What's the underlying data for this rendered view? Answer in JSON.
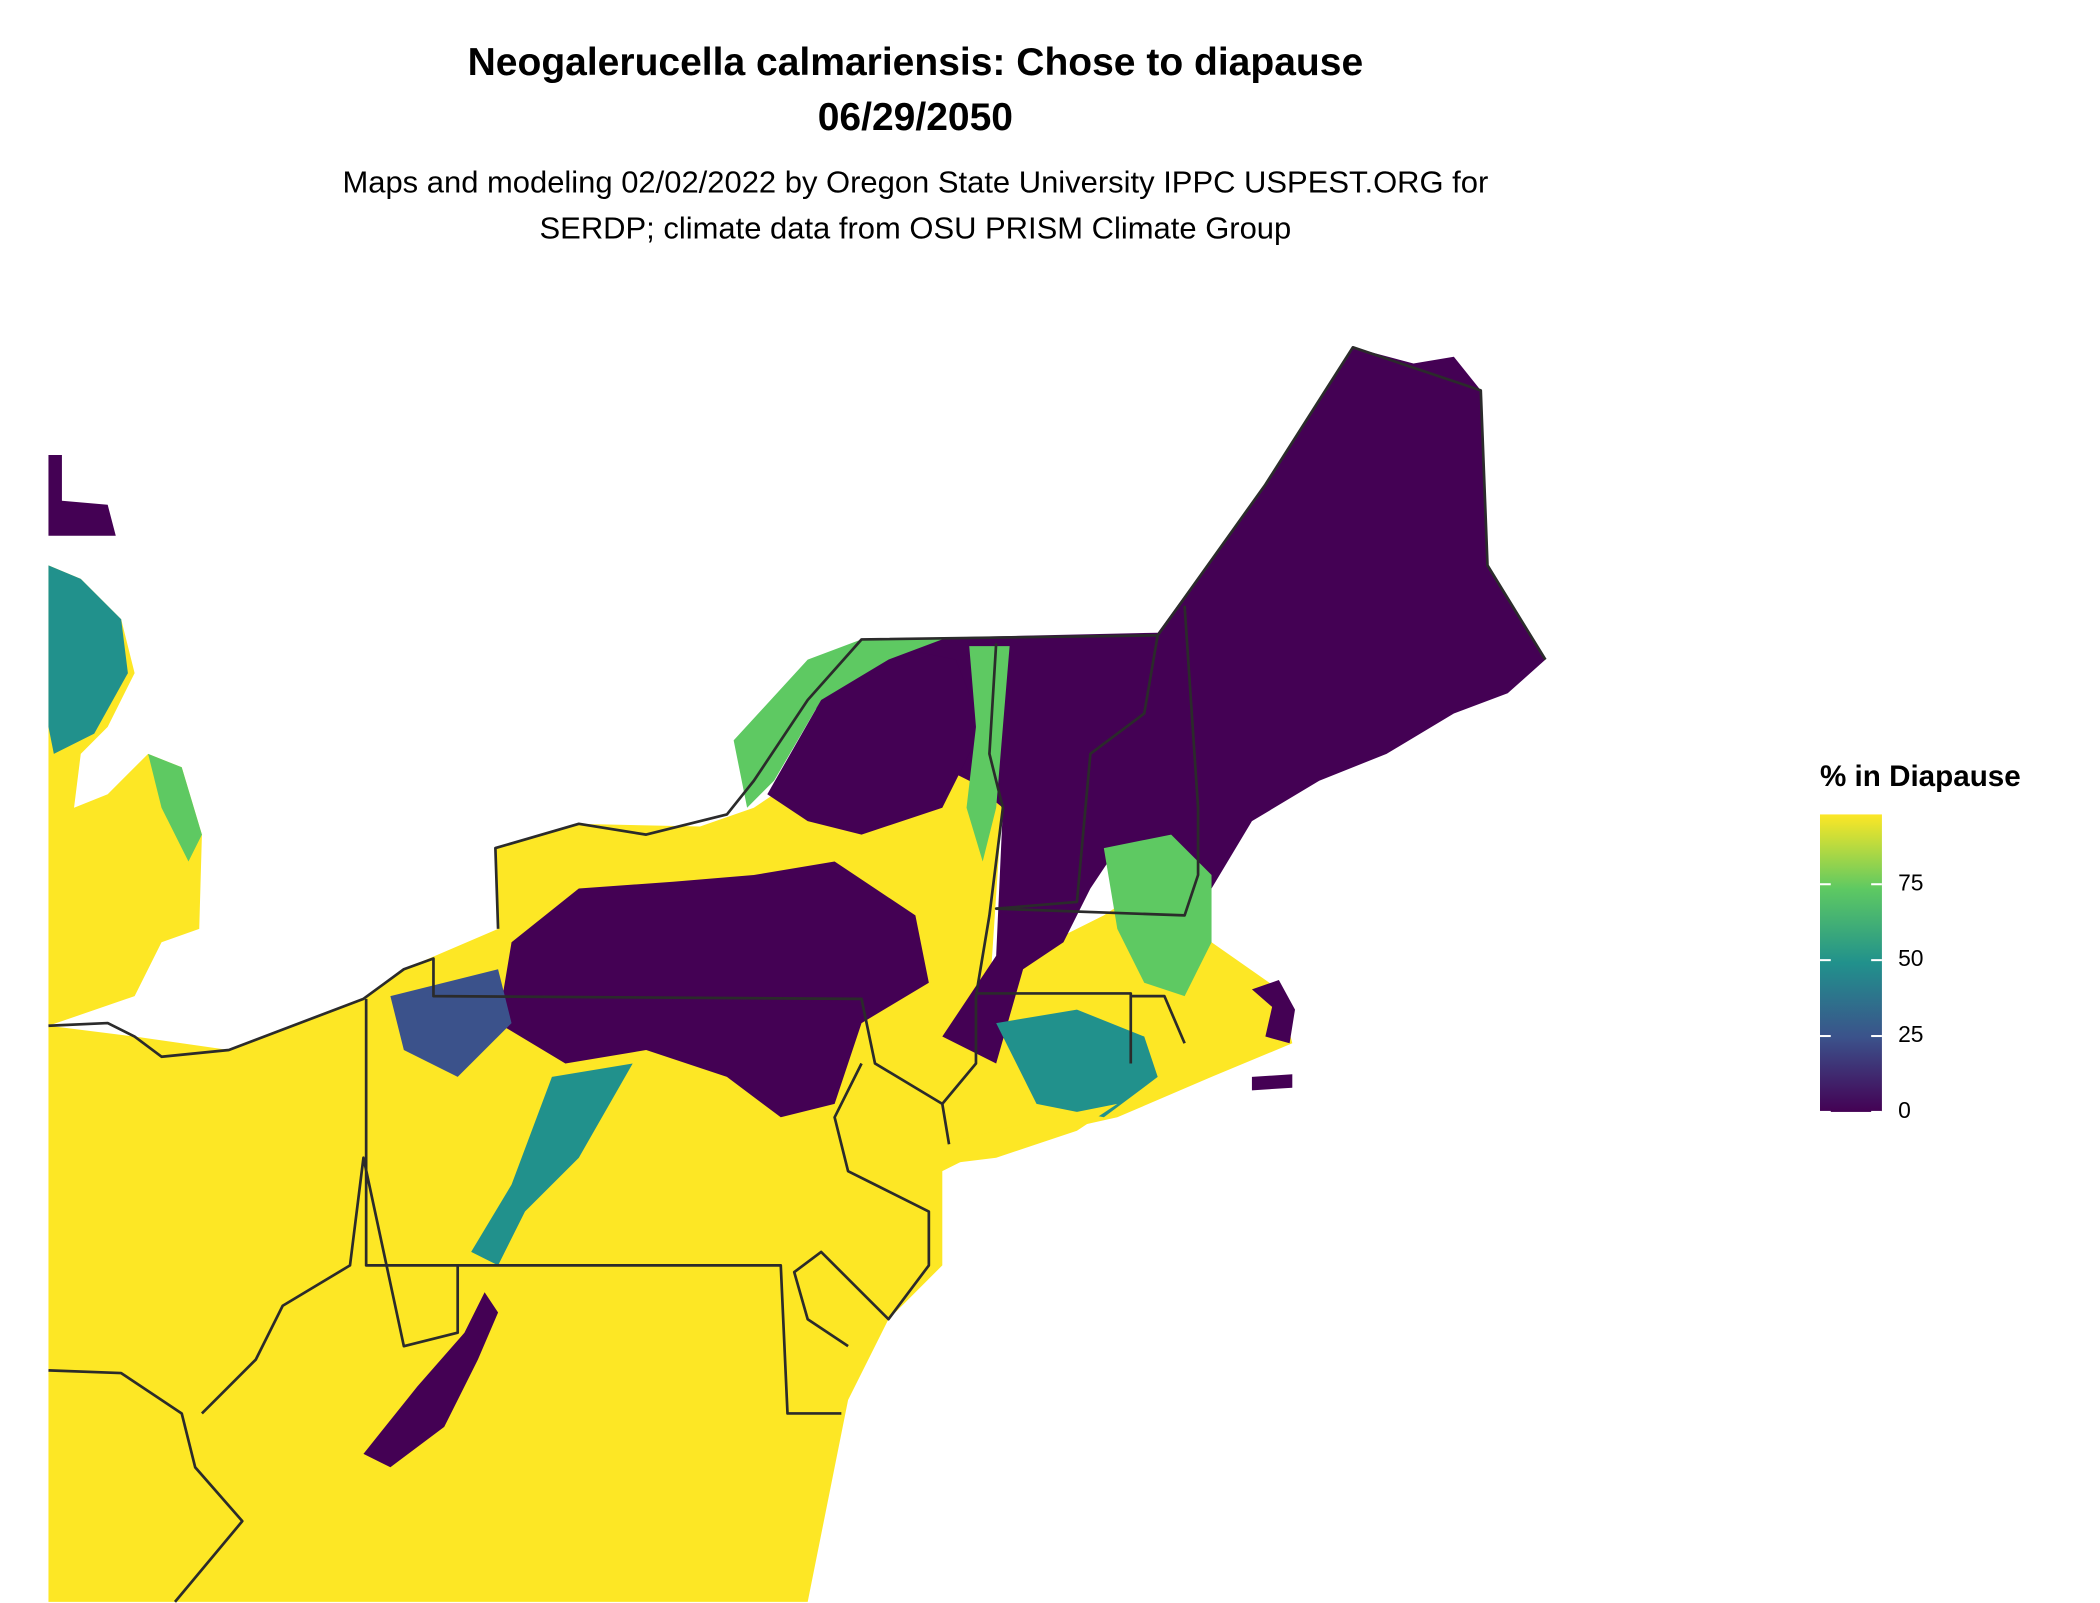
{
  "chart_data": {
    "type": "map",
    "title": "Neogalerucella calmariensis: Chose to diapause",
    "date": "06/29/2050",
    "subtitle": [
      "Maps and modeling 02/02/2022 by Oregon State University IPPC USPEST.ORG for",
      "SERDP; climate data from OSU PRISM Climate Group"
    ],
    "legend_title": "% in Diapause",
    "legend_range": [
      0,
      98
    ],
    "legend_ticks": [
      0,
      25,
      50,
      75
    ],
    "colormap": [
      "#440154",
      "#3b528b",
      "#21918c",
      "#5ec962",
      "#fde725"
    ]
  }
}
